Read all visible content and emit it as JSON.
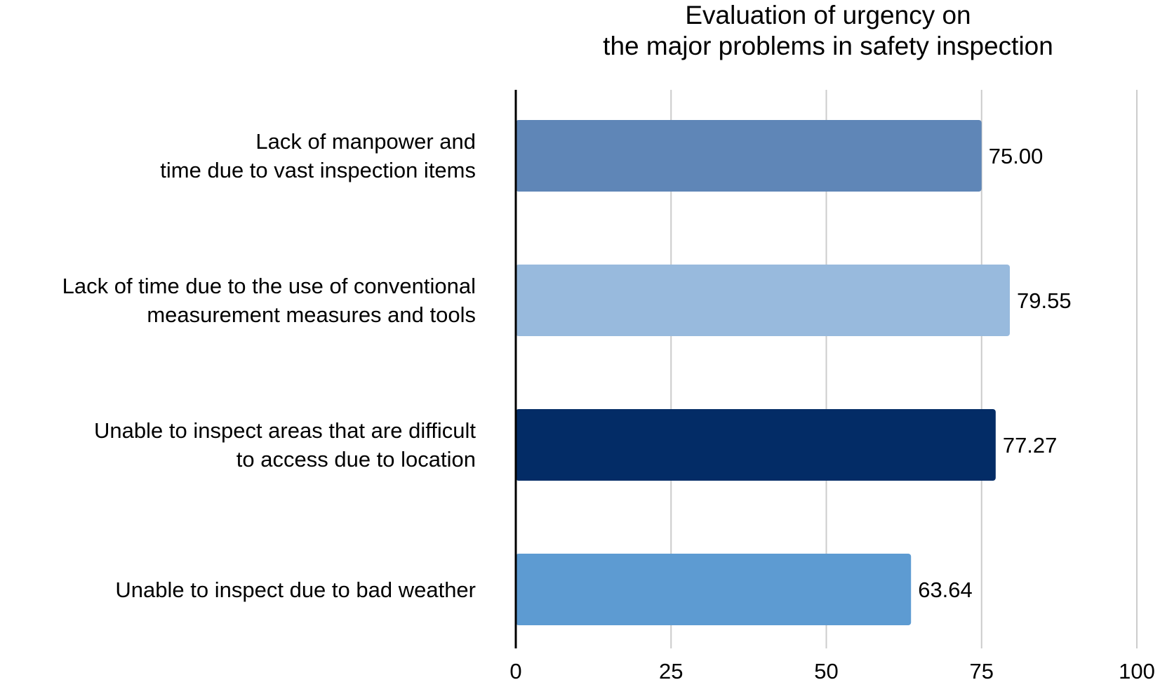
{
  "chart_data": {
    "type": "bar",
    "orientation": "horizontal",
    "title": {
      "line1": "Evaluation of urgency on",
      "line2": "the major problems in safety inspection"
    },
    "xlabel": "",
    "ylabel": "",
    "xlim": [
      0,
      100
    ],
    "ticks": [
      "0",
      "25",
      "50",
      "75",
      "100"
    ],
    "tick_values": [
      0,
      25,
      50,
      75,
      100
    ],
    "grid": true,
    "legend": "none",
    "categories": [
      {
        "line1": "Lack of manpower and",
        "line2": "time due to vast inspection items",
        "value": 75.0,
        "value_label": "75.00",
        "color": "#5F86B7"
      },
      {
        "line1": "Lack of  time due to the use of conventional",
        "line2": "measurement measures and tools",
        "value": 79.55,
        "value_label": "79.55",
        "color": "#98BADD"
      },
      {
        "line1": "Unable to inspect areas that are difficult",
        "line2": "to access due to location",
        "value": 77.27,
        "value_label": "77.27",
        "color": "#032C66"
      },
      {
        "line1": "Unable to inspect due to bad weather",
        "line2": "",
        "value": 63.64,
        "value_label": "63.64",
        "color": "#5D9BD2"
      }
    ],
    "colors": {
      "grid": "#CCCCCC",
      "axis": "#000000"
    }
  }
}
